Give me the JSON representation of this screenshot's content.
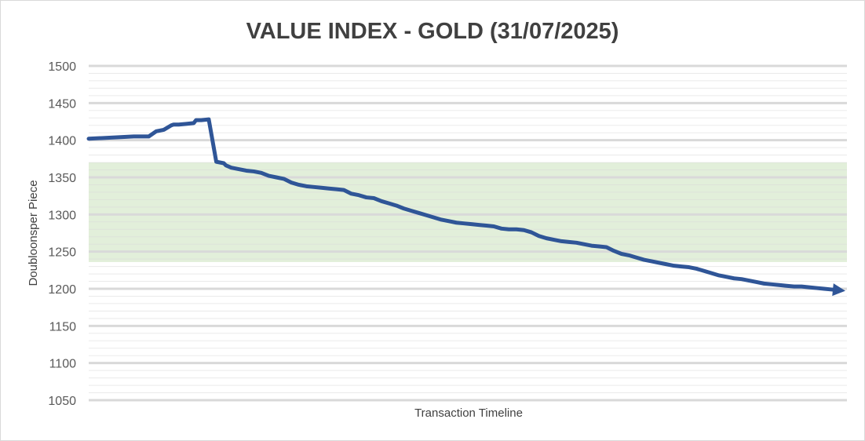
{
  "chart_data": {
    "type": "line",
    "title": "VALUE INDEX - GOLD (31/07/2025)",
    "xlabel": "Transaction Timeline",
    "ylabel": "Doubloonsper Piece",
    "ylim": [
      1050,
      1500
    ],
    "yticks": [
      "1500",
      "1450",
      "1400",
      "1350",
      "1300",
      "1250",
      "1200",
      "1150",
      "1100",
      "1050"
    ],
    "major_grid_step": 50,
    "minor_grid_step": 10,
    "grid": true,
    "shaded_band": {
      "from": 1236,
      "to": 1370,
      "color": "#e2efda"
    },
    "line_color": "#2f5597",
    "gridline_color": "#d9d9d9",
    "series": [
      {
        "x": [
          0,
          2,
          4,
          6,
          7,
          8,
          9,
          10,
          11,
          11.3,
          12,
          13,
          14,
          14.3,
          15,
          16,
          17,
          18,
          18.3,
          19,
          20,
          21,
          22,
          23,
          24,
          25,
          26,
          27,
          28,
          29,
          30,
          31,
          32,
          33,
          34,
          35,
          36,
          37,
          38,
          39,
          40,
          41,
          42,
          43,
          44,
          45,
          46,
          47,
          48,
          49,
          50,
          51,
          52,
          53,
          54,
          55,
          56,
          57,
          58,
          59,
          60,
          61,
          62,
          63,
          64,
          65,
          66,
          67,
          68,
          69,
          70,
          71,
          72,
          73,
          74,
          75,
          76,
          77,
          78,
          79,
          80,
          81,
          82,
          83,
          84,
          85,
          86,
          87,
          88,
          89,
          90,
          91,
          92,
          93,
          94,
          95,
          96,
          97,
          98,
          99,
          100
        ],
        "y": [
          1402,
          1403,
          1404,
          1405,
          1405,
          1405,
          1412,
          1414,
          1420,
          1421,
          1421,
          1422,
          1423,
          1427,
          1427,
          1428,
          1371,
          1369,
          1366,
          1363,
          1361,
          1359,
          1358,
          1356,
          1352,
          1350,
          1348,
          1343,
          1340,
          1338,
          1337,
          1336,
          1335,
          1334,
          1333,
          1328,
          1326,
          1323,
          1322,
          1318,
          1315,
          1312,
          1308,
          1305,
          1302,
          1299,
          1296,
          1293,
          1291,
          1289,
          1288,
          1287,
          1286,
          1285,
          1284,
          1281,
          1280,
          1280,
          1279,
          1276,
          1271,
          1268,
          1266,
          1264,
          1263,
          1262,
          1260,
          1258,
          1257,
          1256,
          1251,
          1247,
          1245,
          1242,
          1239,
          1237,
          1235,
          1233,
          1231,
          1230,
          1229,
          1227,
          1224,
          1221,
          1218,
          1216,
          1214,
          1213,
          1211,
          1209,
          1207,
          1206,
          1205,
          1204,
          1203,
          1203,
          1202,
          1201,
          1200,
          1199,
          1198
        ]
      }
    ]
  }
}
